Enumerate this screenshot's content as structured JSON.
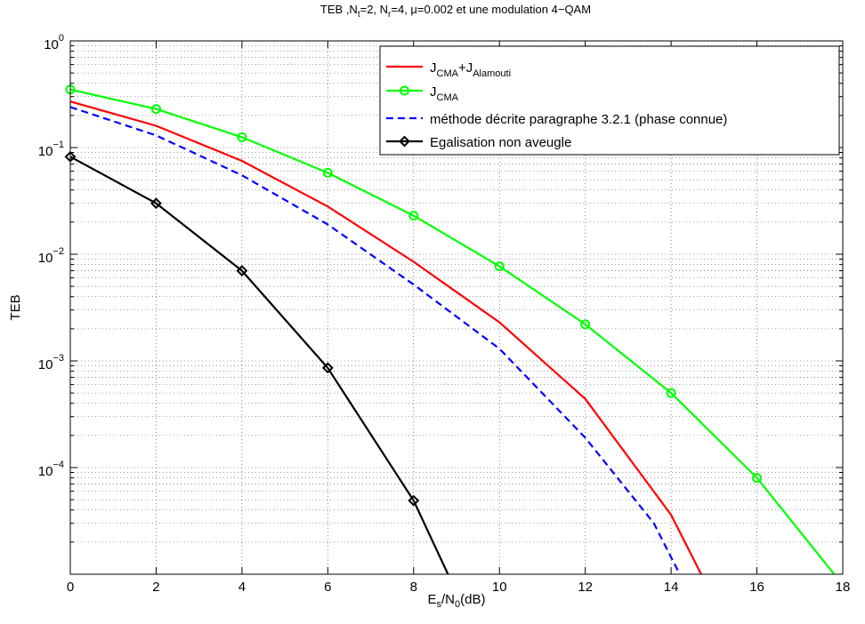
{
  "chart_data": {
    "type": "line",
    "title": "TEB ,N_t=2, N_r=4, μ=0.002 et une modulation 4−QAM",
    "title_parts": {
      "prefix": "TEB ,N",
      "sub1": "t",
      "mid1": "=2, N",
      "sub2": "r",
      "suffix": "=4, μ=0.002 et une modulation 4−QAM"
    },
    "xlabel": "E_s/N_0(dB)",
    "xlabel_parts": {
      "a": "E",
      "sub_a": "s",
      "b": "/N",
      "sub_b": "0",
      "c": "(dB)"
    },
    "ylabel": "TEB",
    "y_scale": "log",
    "xlim": [
      0,
      18
    ],
    "ylim": [
      1e-05,
      1
    ],
    "grid": true,
    "legend_position": "top-right",
    "x_ticks": [
      "0",
      "2",
      "4",
      "6",
      "8",
      "10",
      "12",
      "14",
      "16",
      "18"
    ],
    "y_ticks": [
      {
        "base": "10",
        "exp": "0"
      },
      {
        "base": "10",
        "exp": "-1"
      },
      {
        "base": "10",
        "exp": "-2"
      },
      {
        "base": "10",
        "exp": "-3"
      },
      {
        "base": "10",
        "exp": "-4"
      }
    ],
    "series": [
      {
        "name": "J_CMA+J_Alamouti",
        "legend_parts": [
          "J",
          "CMA",
          "+J",
          "Alamouti"
        ],
        "color": "#ff0000",
        "dash": "solid",
        "marker": "none",
        "x": [
          0,
          2,
          4,
          6,
          8,
          10,
          12,
          14,
          14.7
        ],
        "y": [
          0.27,
          0.16,
          0.075,
          0.028,
          0.0085,
          0.0023,
          0.00044,
          3.6e-05,
          1e-05
        ]
      },
      {
        "name": "J_CMA",
        "legend_parts": [
          "J",
          "CMA",
          "",
          ""
        ],
        "color": "#00ff00",
        "dash": "solid",
        "marker": "circle",
        "x": [
          0,
          2,
          4,
          6,
          8,
          10,
          12,
          14,
          16,
          17.8
        ],
        "y": [
          0.35,
          0.23,
          0.125,
          0.058,
          0.023,
          0.0077,
          0.0022,
          0.0005,
          8e-05,
          1e-05
        ]
      },
      {
        "name": "méthode décrite paragraphe 3.2.1 (phase connue)",
        "legend_parts": [
          "méthode décrite paragraphe 3.2.1 (phase connue)",
          "",
          "",
          ""
        ],
        "color": "#0000ff",
        "dash": "dashed",
        "marker": "none",
        "x": [
          0,
          2,
          4,
          6,
          8,
          10,
          12,
          13.6,
          14.2
        ],
        "y": [
          0.24,
          0.13,
          0.055,
          0.019,
          0.0052,
          0.0013,
          0.00019,
          3e-05,
          1e-05
        ]
      },
      {
        "name": "Egalisation non aveugle",
        "legend_parts": [
          "Egalisation non aveugle",
          "",
          "",
          ""
        ],
        "color": "#000000",
        "dash": "solid",
        "marker": "diamond",
        "x": [
          0,
          2,
          4,
          6,
          8,
          8.8
        ],
        "y": [
          0.082,
          0.03,
          0.007,
          0.00086,
          4.9e-05,
          1e-05
        ]
      }
    ]
  }
}
